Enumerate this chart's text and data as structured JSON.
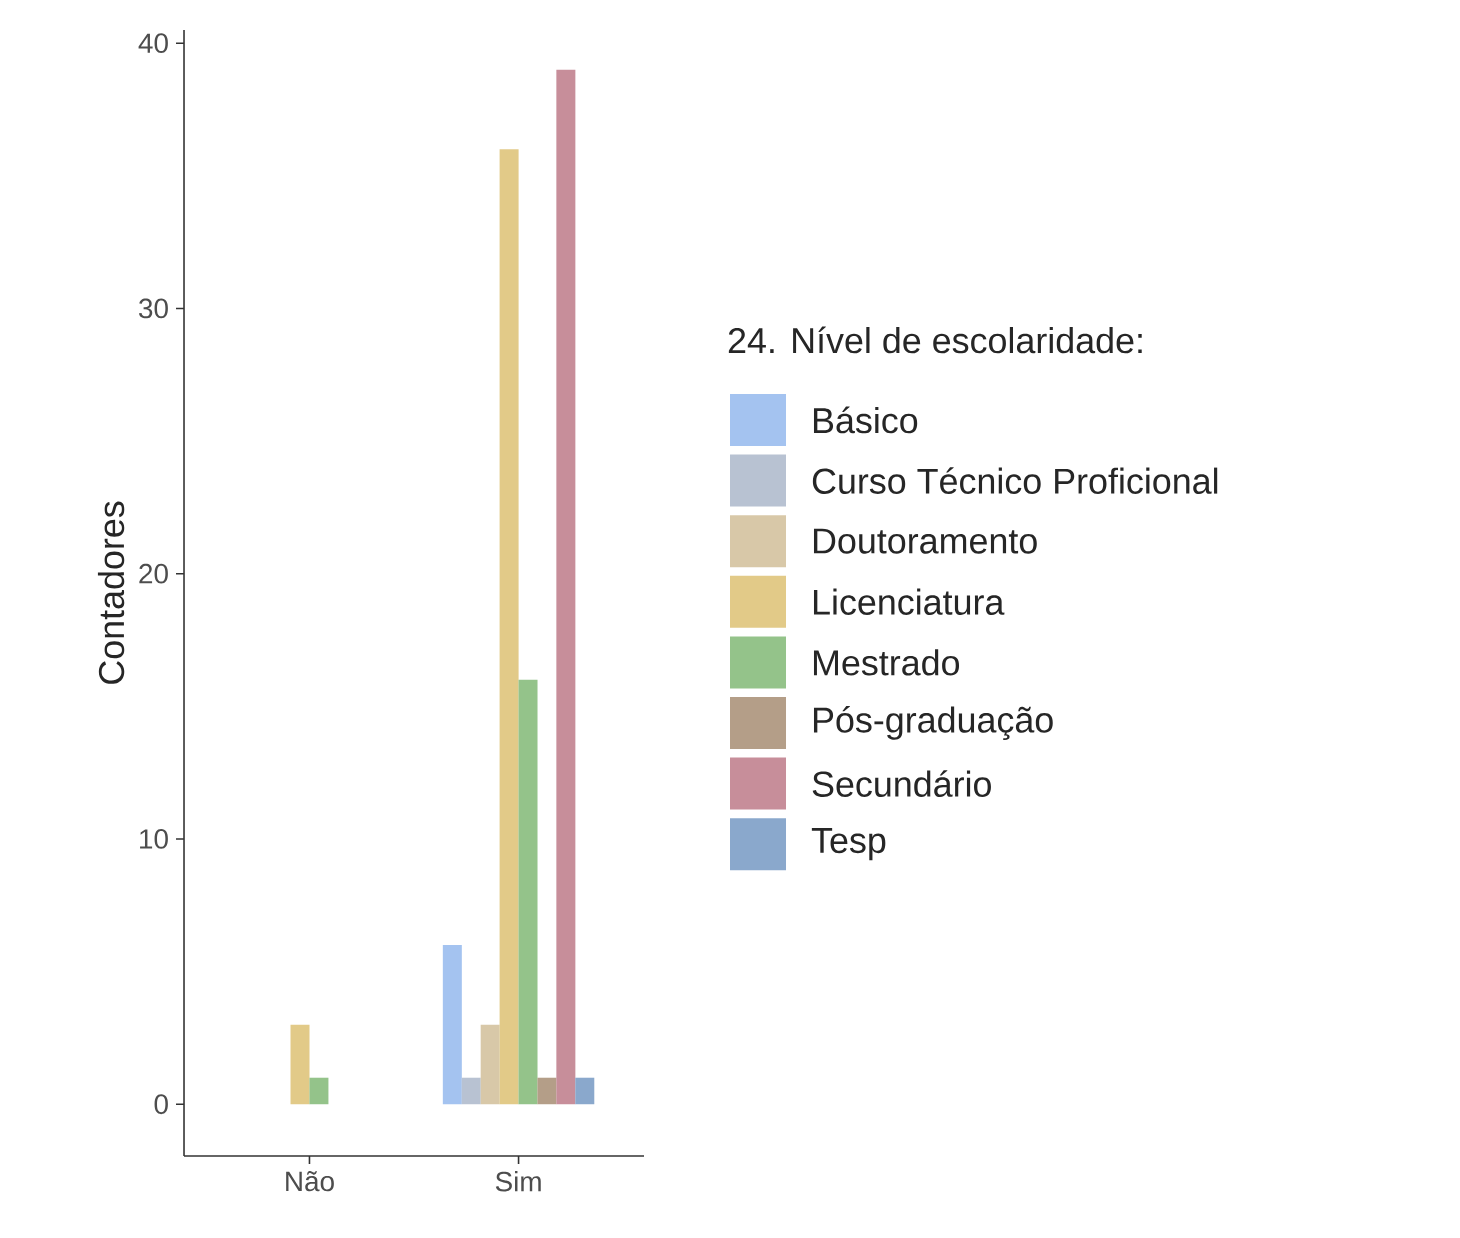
{
  "chart_data": {
    "type": "bar",
    "ylabel": "Contadores",
    "legend_title": "24. Nível de escolaridade:",
    "legend": "right",
    "grid": false,
    "categories": [
      "Não",
      "Sim"
    ],
    "ylim": [
      -1.95,
      40.5
    ],
    "yticks": [
      0,
      10,
      20,
      30,
      40
    ],
    "series": [
      {
        "name": "Básico",
        "color": "#a4c3f0",
        "values": [
          null,
          6
        ]
      },
      {
        "name": "Curso Técnico Proficional",
        "color": "#b8c2d2",
        "values": [
          null,
          1
        ]
      },
      {
        "name": "Doutoramento",
        "color": "#d8c8a8",
        "values": [
          null,
          3
        ]
      },
      {
        "name": "Licenciatura",
        "color": "#e2ca88",
        "values": [
          3,
          36
        ]
      },
      {
        "name": "Mestrado",
        "color": "#94c38a",
        "values": [
          1,
          16
        ]
      },
      {
        "name": "Pós-graduação",
        "color": "#b49e88",
        "values": [
          null,
          1
        ]
      },
      {
        "name": "Secundário",
        "color": "#c78e9a",
        "values": [
          null,
          39
        ]
      },
      {
        "name": "Tesp",
        "color": "#8aa8cc",
        "values": [
          null,
          1
        ]
      }
    ]
  }
}
